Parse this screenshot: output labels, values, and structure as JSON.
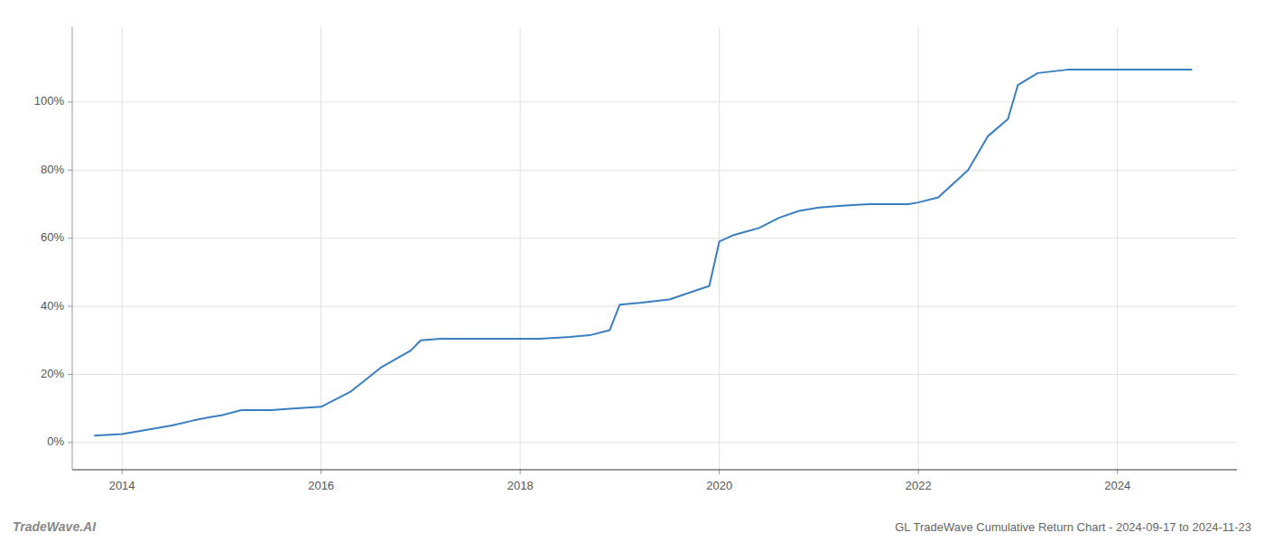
{
  "chart_data": {
    "type": "line",
    "title": "GL TradeWave Cumulative Return Chart - 2024-09-17 to 2024-11-23",
    "annotations": [
      "TradeWave.AI"
    ],
    "color": "#3a7ebf",
    "x": [
      2013.72,
      2014.0,
      2014.2,
      2014.5,
      2014.72,
      2014.9,
      2015.0,
      2015.2,
      2015.5,
      2015.72,
      2016.0,
      2016.3,
      2016.6,
      2016.9,
      2017.0,
      2017.2,
      2017.5,
      2017.7,
      2017.9,
      2018.0,
      2018.2,
      2018.5,
      2018.7,
      2018.9,
      2019.0,
      2019.2,
      2019.5,
      2019.7,
      2019.9,
      2020.0,
      2020.15,
      2020.4,
      2020.6,
      2020.8,
      2021.0,
      2021.2,
      2021.5,
      2021.7,
      2021.9,
      2022.0,
      2022.2,
      2022.5,
      2022.7,
      2022.9,
      2023.0,
      2023.2,
      2023.5,
      2023.7,
      2023.9,
      2024.0,
      2024.3,
      2024.75
    ],
    "values": [
      2.0,
      2.5,
      3.5,
      5.0,
      6.5,
      7.5,
      8.0,
      9.5,
      9.5,
      10.0,
      10.5,
      15.0,
      22.0,
      27.0,
      30.0,
      30.5,
      30.5,
      30.5,
      30.5,
      30.5,
      30.5,
      31.0,
      31.5,
      33.0,
      40.5,
      41.0,
      42.0,
      44.0,
      46.0,
      59.0,
      61.0,
      63.0,
      66.0,
      68.0,
      69.0,
      69.5,
      70.0,
      70.0,
      70.0,
      70.5,
      72.0,
      80.0,
      90.0,
      95.0,
      105.0,
      108.5,
      109.5,
      109.5,
      109.5,
      109.5,
      109.5,
      109.5
    ],
    "xlim": [
      2013.5,
      2025.2
    ],
    "ylim": [
      -8,
      122
    ],
    "xticks": [
      2014,
      2016,
      2018,
      2020,
      2022,
      2024
    ],
    "yticks": [
      {
        "value": 0,
        "label": "0%"
      },
      {
        "value": 20,
        "label": "20%"
      },
      {
        "value": 40,
        "label": "40%"
      },
      {
        "value": 60,
        "label": "60%"
      },
      {
        "value": 80,
        "label": "80%"
      },
      {
        "value": 100,
        "label": "100%"
      }
    ],
    "grid": true
  }
}
